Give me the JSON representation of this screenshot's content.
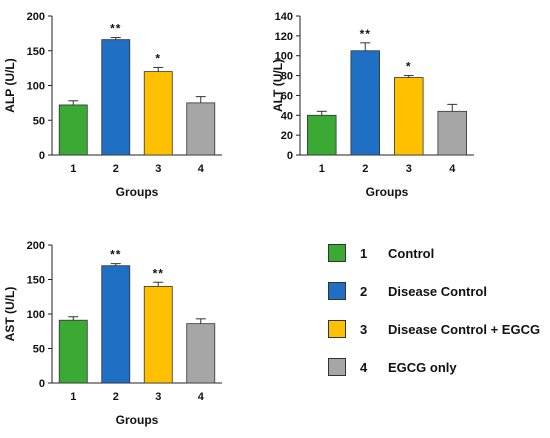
{
  "chart_data": [
    {
      "type": "bar",
      "title": "",
      "xlabel": "Groups",
      "ylabel": "ALP (U/L)",
      "categories": [
        "1",
        "2",
        "3",
        "4"
      ],
      "values": [
        72,
        166,
        120,
        75
      ],
      "errors": [
        6,
        3,
        6,
        9
      ],
      "significance": [
        "",
        "**",
        "*",
        ""
      ],
      "ylim": [
        0,
        200
      ],
      "yticks": [
        0,
        50,
        100,
        150,
        200
      ]
    },
    {
      "type": "bar",
      "title": "",
      "xlabel": "Groups",
      "ylabel": "ALT (U/L)",
      "categories": [
        "1",
        "2",
        "3",
        "4"
      ],
      "values": [
        40,
        105,
        78,
        44
      ],
      "errors": [
        4,
        8,
        2,
        7
      ],
      "significance": [
        "",
        "**",
        "*",
        ""
      ],
      "ylim": [
        0,
        140
      ],
      "yticks": [
        0,
        20,
        40,
        60,
        80,
        100,
        120,
        140
      ]
    },
    {
      "type": "bar",
      "title": "",
      "xlabel": "Groups",
      "ylabel": "AST (U/L)",
      "categories": [
        "1",
        "2",
        "3",
        "4"
      ],
      "values": [
        91,
        170,
        140,
        86
      ],
      "errors": [
        5,
        3,
        6,
        7
      ],
      "significance": [
        "",
        "**",
        "**",
        ""
      ],
      "ylim": [
        0,
        200
      ],
      "yticks": [
        0,
        50,
        100,
        150,
        200
      ]
    }
  ],
  "colors": [
    "#3aaa35",
    "#1f6fc5",
    "#ffc000",
    "#a6a6a6"
  ],
  "legend": [
    {
      "number": "1",
      "label": "Control"
    },
    {
      "number": "2",
      "label": "Disease Control"
    },
    {
      "number": "3",
      "label": "Disease Control + EGCG"
    },
    {
      "number": "4",
      "label": "EGCG only"
    }
  ]
}
